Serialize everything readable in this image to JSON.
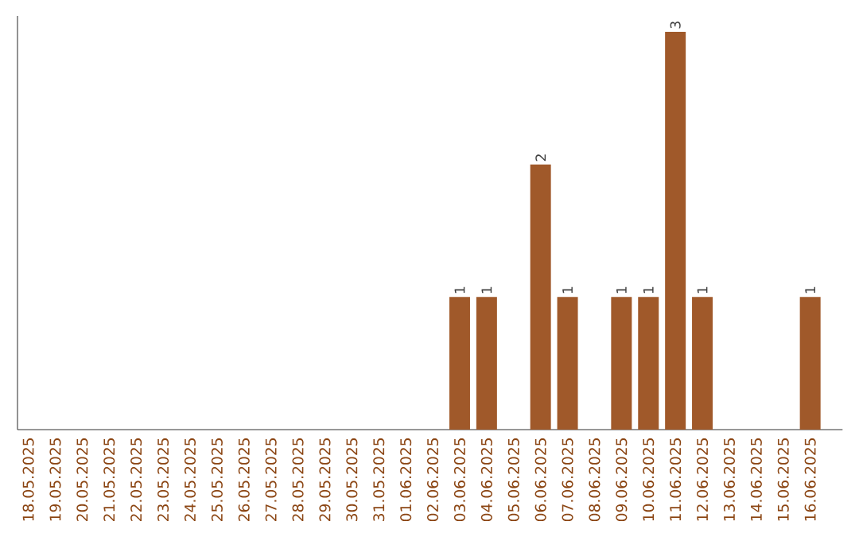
{
  "chart_data": {
    "type": "bar",
    "categories": [
      "18.05.2025",
      "19.05.2025",
      "20.05.2025",
      "21.05.2025",
      "22.05.2025",
      "23.05.2025",
      "24.05.2025",
      "25.05.2025",
      "26.05.2025",
      "27.05.2025",
      "28.05.2025",
      "29.05.2025",
      "30.05.2025",
      "31.05.2025",
      "01.06.2025",
      "02.06.2025",
      "03.06.2025",
      "04.06.2025",
      "05.06.2025",
      "06.06.2025",
      "07.06.2025",
      "08.06.2025",
      "09.06.2025",
      "10.06.2025",
      "11.06.2025",
      "12.06.2025",
      "13.06.2025",
      "14.06.2025",
      "15.06.2025",
      "16.06.2025"
    ],
    "values": [
      null,
      null,
      null,
      null,
      null,
      null,
      null,
      null,
      null,
      null,
      null,
      null,
      null,
      null,
      null,
      null,
      1,
      1,
      null,
      2,
      1,
      null,
      1,
      1,
      3,
      1,
      null,
      null,
      null,
      1
    ],
    "data_labels": true,
    "color": "#a0592a",
    "tick_labels": "x"
  }
}
